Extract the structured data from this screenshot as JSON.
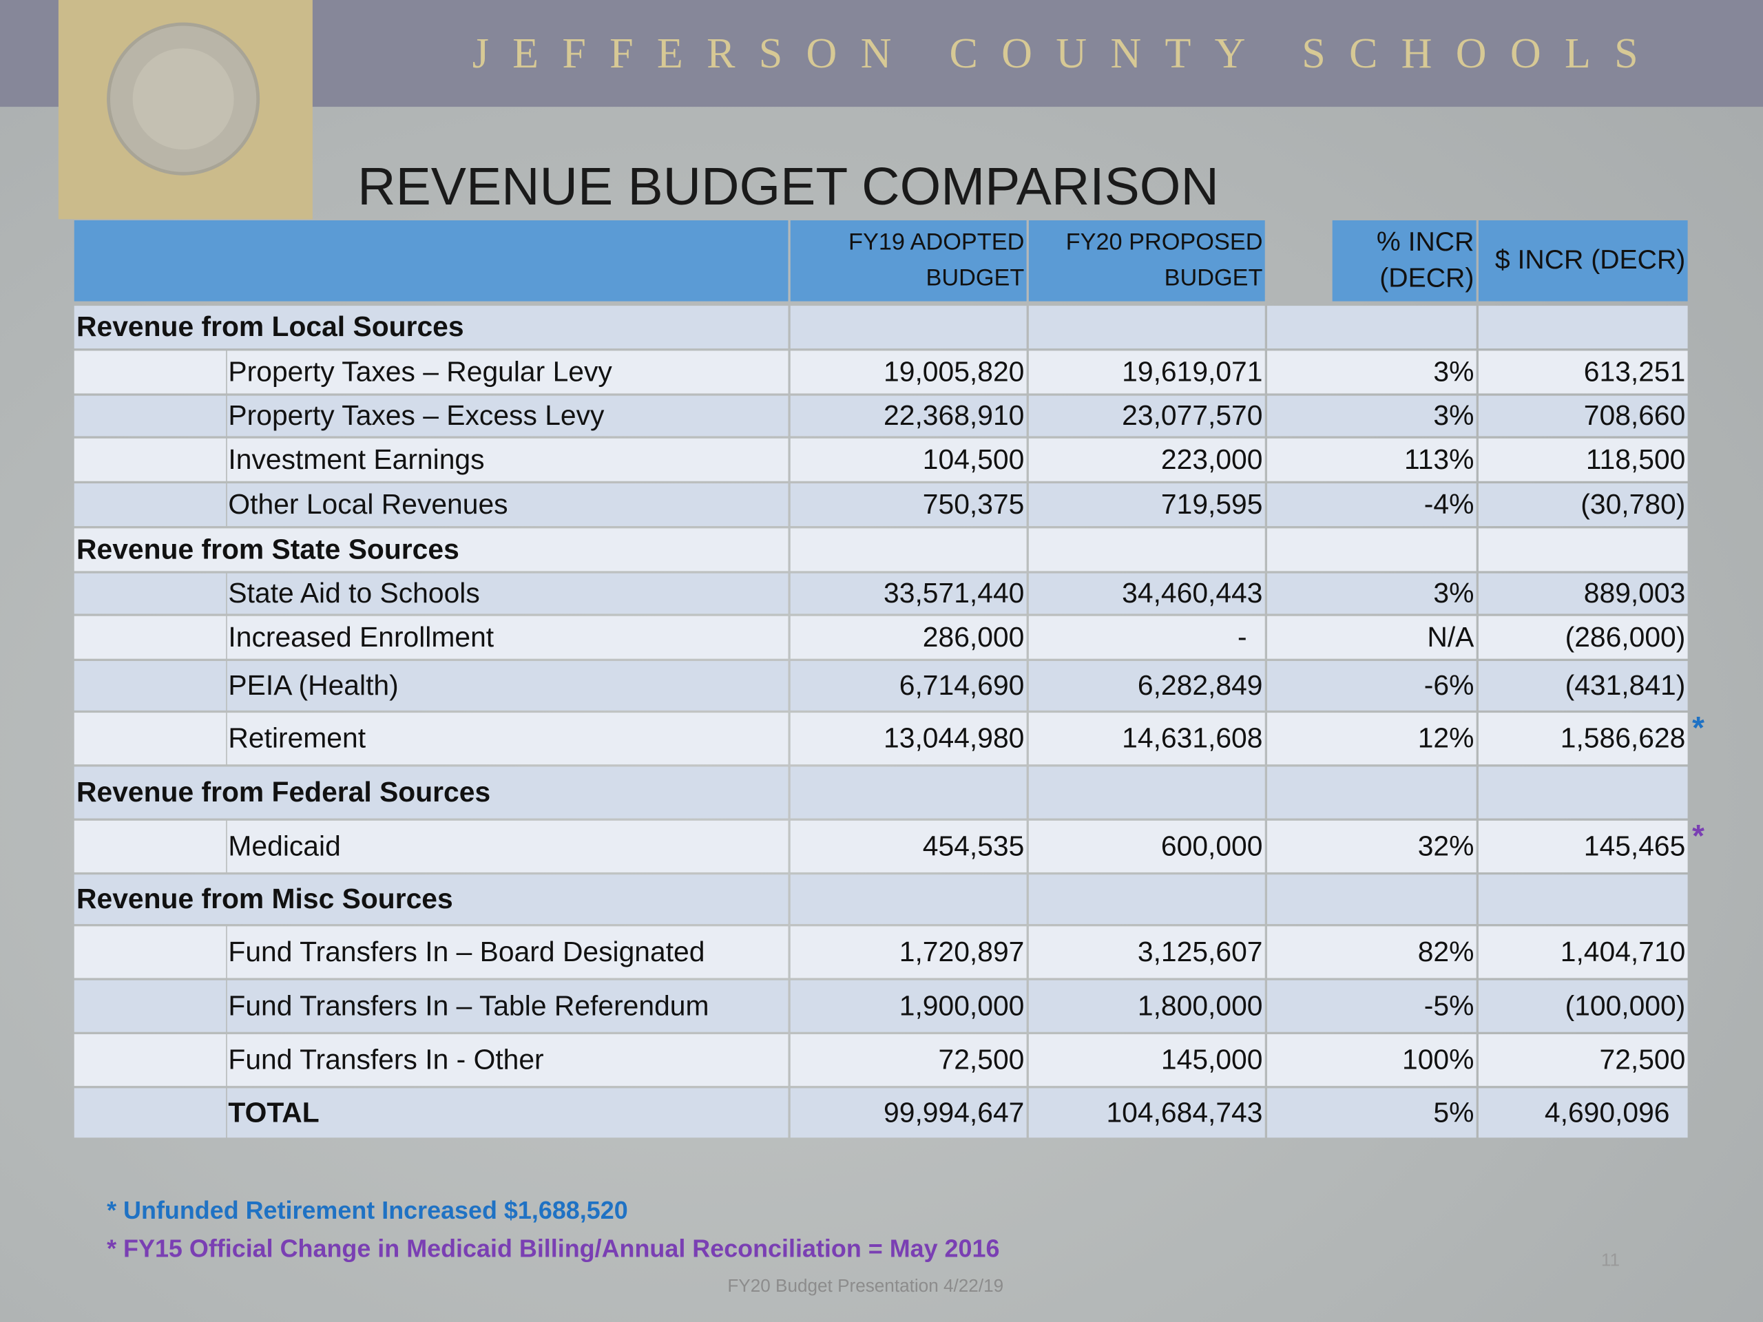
{
  "header": {
    "title": "JEFFERSON COUNTY SCHOOLS"
  },
  "slide": {
    "title": "REVENUE BUDGET COMPARISON",
    "page_number": "11",
    "footer": "FY20 Budget Presentation 4/22/19"
  },
  "table": {
    "columns": [
      "",
      "FY19 ADOPTED BUDGET",
      "FY20 PROPOSED BUDGET",
      "% INCR (DECR)",
      "$ INCR (DECR)"
    ],
    "rows": [
      {
        "section": "Revenue from Local Sources"
      },
      {
        "label": "Property Taxes – Regular Levy",
        "fy19": "19,005,820",
        "fy20": "19,619,071",
        "pct": "3%",
        "incr": "613,251"
      },
      {
        "label": "Property Taxes – Excess Levy",
        "fy19": "22,368,910",
        "fy20": "23,077,570",
        "pct": "3%",
        "incr": "708,660"
      },
      {
        "label": "Investment Earnings",
        "fy19": "104,500",
        "fy20": "223,000",
        "pct": "113%",
        "incr": "118,500"
      },
      {
        "label": "Other Local Revenues",
        "fy19": "750,375",
        "fy20": "719,595",
        "pct": "-4%",
        "incr": "(30,780)"
      },
      {
        "section": "Revenue from State Sources"
      },
      {
        "label": "State Aid to Schools",
        "fy19": "33,571,440",
        "fy20": "34,460,443",
        "pct": "3%",
        "incr": "889,003"
      },
      {
        "label": "Increased Enrollment",
        "fy19": "286,000",
        "fy20": "-",
        "pct": "N/A",
        "incr": "(286,000)"
      },
      {
        "label": "PEIA (Health)",
        "fy19": "6,714,690",
        "fy20": "6,282,849",
        "pct": "-6%",
        "incr": "(431,841)"
      },
      {
        "label": "Retirement",
        "fy19": "13,044,980",
        "fy20": "14,631,608",
        "pct": "12%",
        "incr": "1,586,628",
        "mark": "*"
      },
      {
        "section": "Revenue from Federal Sources"
      },
      {
        "label": "Medicaid",
        "fy19": "454,535",
        "fy20": "600,000",
        "pct": "32%",
        "incr": "145,465",
        "mark": "*"
      },
      {
        "section": "Revenue from Misc Sources"
      },
      {
        "label": "Fund Transfers In – Board Designated",
        "fy19": "1,720,897",
        "fy20": "3,125,607",
        "pct": "82%",
        "incr": "1,404,710"
      },
      {
        "label": "Fund Transfers In – Table Referendum",
        "fy19": "1,900,000",
        "fy20": "1,800,000",
        "pct": "-5%",
        "incr": "(100,000)"
      },
      {
        "label": "Fund Transfers In - Other",
        "fy19": "72,500",
        "fy20": "145,000",
        "pct": "100%",
        "incr": "72,500"
      },
      {
        "label": "TOTAL",
        "fy19": "99,994,647",
        "fy20": "104,684,743",
        "pct": "5%",
        "incr": "4,690,096"
      }
    ]
  },
  "footnotes": [
    "* Unfunded Retirement Increased $1,688,520",
    "* FY15 Official Change in Medicaid Billing/Annual Reconciliation = May 2016"
  ]
}
